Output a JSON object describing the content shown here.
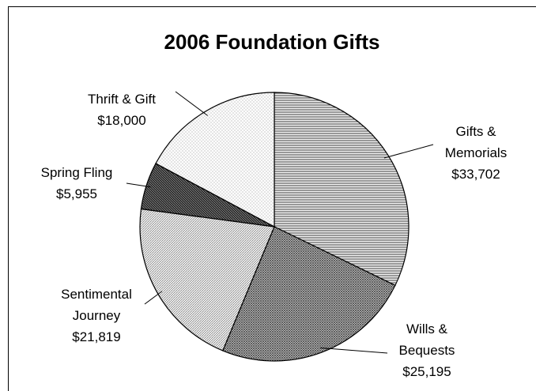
{
  "chart_data": {
    "type": "pie",
    "title": "2006 Foundation Gifts",
    "categories": [
      "Gifts & Memorials",
      "Wills & Bequests",
      "Sentimental Journey",
      "Spring Fling",
      "Thrift & Gift"
    ],
    "values": [
      33702,
      25195,
      21819,
      5955,
      18000
    ],
    "value_labels": [
      "$33,702",
      "$25,195",
      "$21,819",
      "$5,955",
      "$18,000"
    ],
    "colors": [
      "#9a9a9a",
      "#6e6e6e",
      "#c8c8c8",
      "#3a3a3a",
      "#f2f2f2"
    ]
  }
}
